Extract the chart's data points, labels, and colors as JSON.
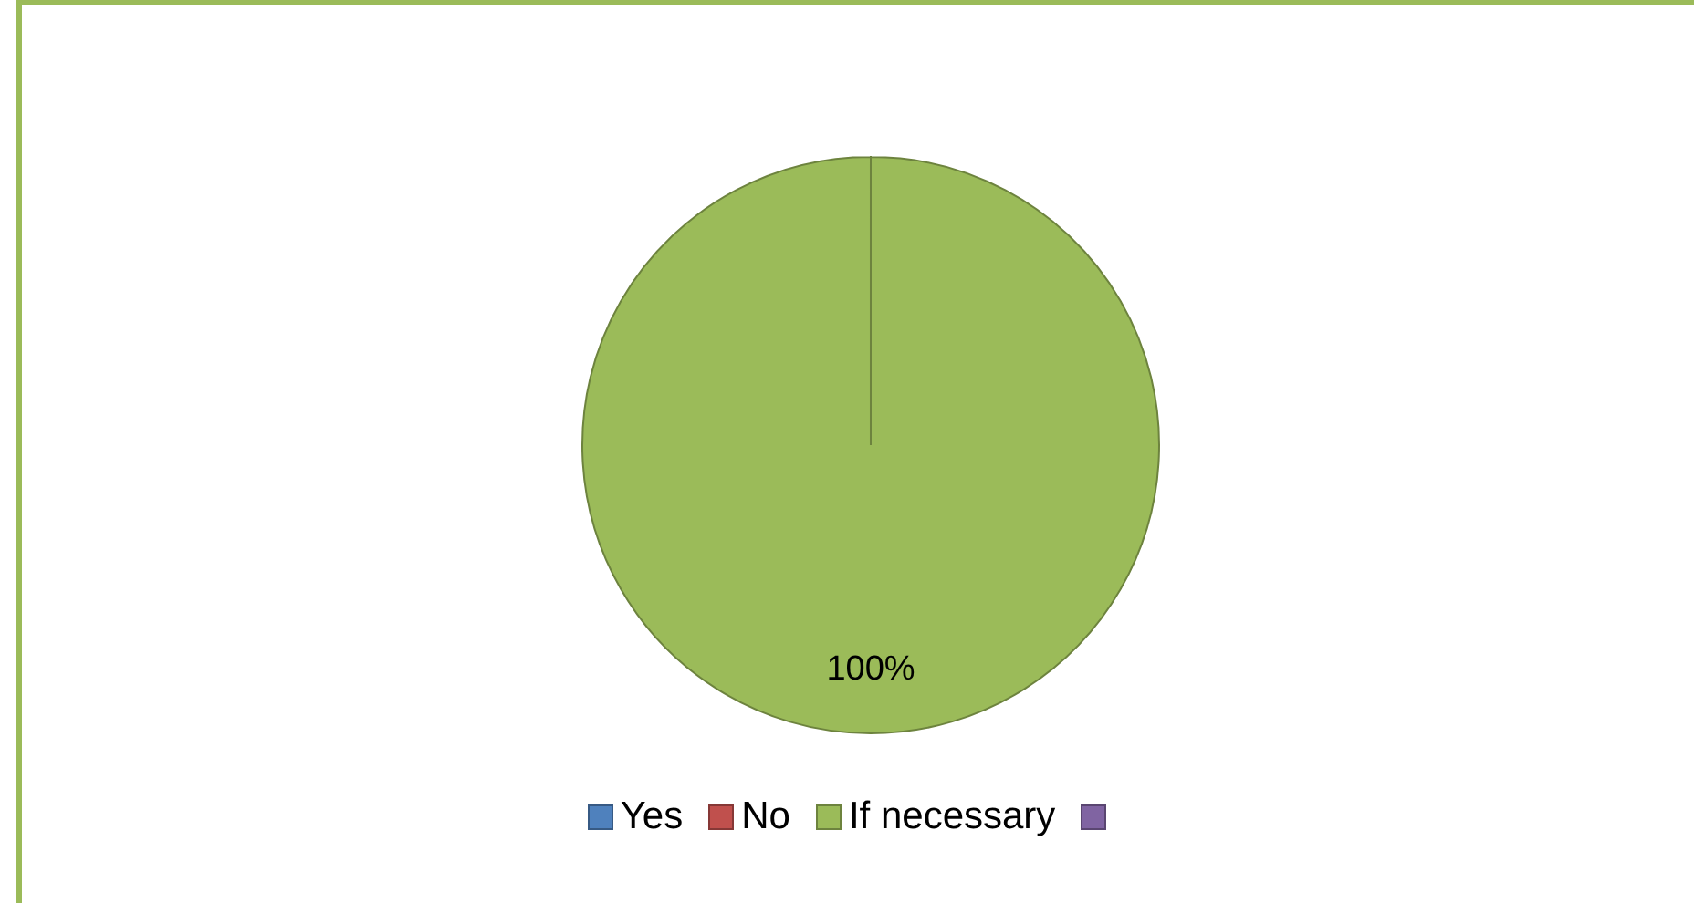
{
  "chart_data": {
    "type": "pie",
    "categories": [
      "Yes",
      "No",
      "If necessary",
      null
    ],
    "values": [
      0,
      0,
      100,
      0
    ],
    "colors": [
      "#4f81bd",
      "#c0504d",
      "#9bbb59",
      "#8064a2"
    ],
    "value_labels": [
      null,
      null,
      "100%",
      null
    ],
    "legend": "bottom"
  }
}
